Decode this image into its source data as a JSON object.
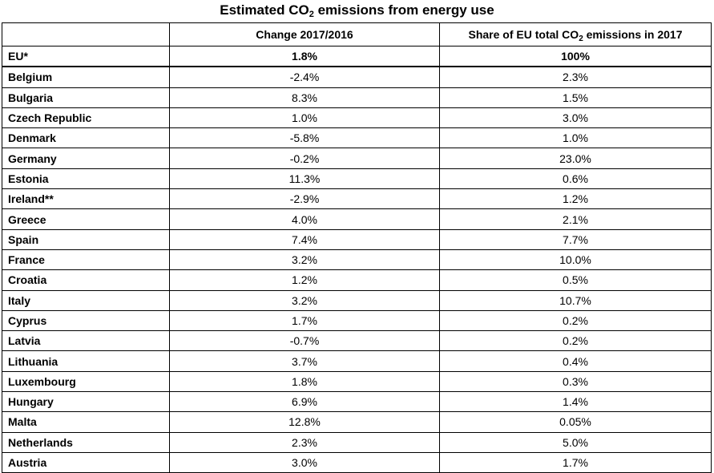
{
  "title": {
    "prefix": "Estimated CO",
    "subscript": "2",
    "suffix": " emissions from energy use"
  },
  "table": {
    "headers": {
      "country": "",
      "change": "Change 2017/2016",
      "share_prefix": "Share of EU total CO",
      "share_subscript": "2",
      "share_suffix": " emissions in 2017"
    },
    "rows": [
      {
        "country": "EU*",
        "change": "1.8%",
        "share": "100%"
      },
      {
        "country": "Belgium",
        "change": "-2.4%",
        "share": "2.3%"
      },
      {
        "country": "Bulgaria",
        "change": "8.3%",
        "share": "1.5%"
      },
      {
        "country": "Czech Republic",
        "change": "1.0%",
        "share": "3.0%"
      },
      {
        "country": "Denmark",
        "change": "-5.8%",
        "share": "1.0%"
      },
      {
        "country": "Germany",
        "change": "-0.2%",
        "share": "23.0%"
      },
      {
        "country": "Estonia",
        "change": "11.3%",
        "share": "0.6%"
      },
      {
        "country": "Ireland**",
        "change": "-2.9%",
        "share": "1.2%"
      },
      {
        "country": "Greece",
        "change": "4.0%",
        "share": "2.1%"
      },
      {
        "country": "Spain",
        "change": "7.4%",
        "share": "7.7%"
      },
      {
        "country": "France",
        "change": "3.2%",
        "share": "10.0%"
      },
      {
        "country": "Croatia",
        "change": "1.2%",
        "share": "0.5%"
      },
      {
        "country": "Italy",
        "change": "3.2%",
        "share": "10.7%"
      },
      {
        "country": "Cyprus",
        "change": "1.7%",
        "share": "0.2%"
      },
      {
        "country": "Latvia",
        "change": "-0.7%",
        "share": "0.2%"
      },
      {
        "country": "Lithuania",
        "change": "3.7%",
        "share": "0.4%"
      },
      {
        "country": "Luxembourg",
        "change": "1.8%",
        "share": "0.3%"
      },
      {
        "country": "Hungary",
        "change": "6.9%",
        "share": "1.4%"
      },
      {
        "country": "Malta",
        "change": "12.8%",
        "share": "0.05%"
      },
      {
        "country": "Netherlands",
        "change": "2.3%",
        "share": "5.0%"
      },
      {
        "country": "Austria",
        "change": "3.0%",
        "share": "1.7%"
      }
    ]
  }
}
